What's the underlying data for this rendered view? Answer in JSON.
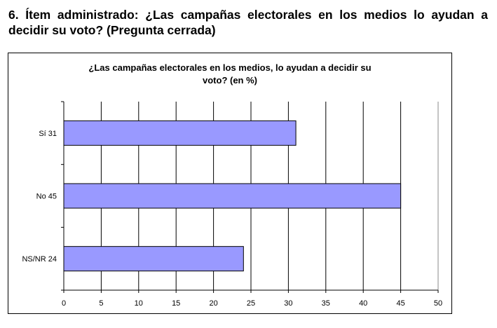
{
  "heading": "6. Ítem administrado: ¿Las campañas electorales en los medios lo ayudan a decidir su voto? (Pregunta cerrada)",
  "chart_data": {
    "type": "bar",
    "orientation": "horizontal",
    "title_lines": [
      "¿Las campañas electorales en los medios, lo ayudan a decidir su",
      "voto? (en %)"
    ],
    "categories": [
      "Sí 31",
      "No 45",
      "NS/NR 24"
    ],
    "values": [
      31,
      45,
      24
    ],
    "xlim": [
      0,
      50
    ],
    "xticks": [
      0,
      5,
      10,
      15,
      20,
      25,
      30,
      35,
      40,
      45,
      50
    ],
    "grid": true,
    "bar_color": "#9999ff"
  }
}
